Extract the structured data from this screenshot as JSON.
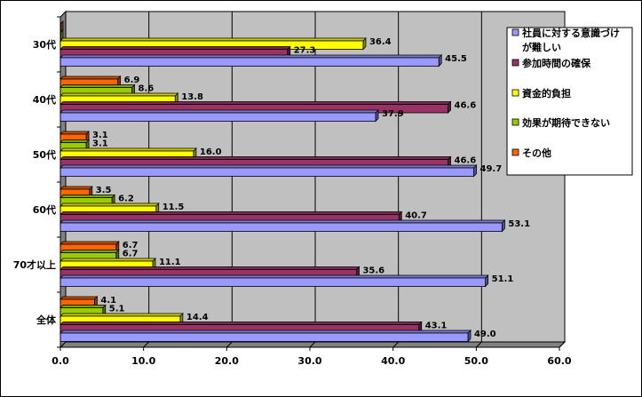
{
  "chart_data": {
    "type": "bar",
    "orientation": "horizontal",
    "title": "",
    "xlabel": "",
    "ylabel": "",
    "xlim": [
      0,
      60
    ],
    "x_ticks": [
      "0.0",
      "10.0",
      "20.0",
      "30.0",
      "40.0",
      "50.0",
      "60.0"
    ],
    "grid": "vertical",
    "legend_position": "right",
    "categories": [
      "30代",
      "40代",
      "50代",
      "60代",
      "70才以上",
      "全体"
    ],
    "series": [
      {
        "name": "社員に対する意識づけが難しい",
        "color": "#9999ff",
        "values": [
          45.5,
          37.9,
          49.7,
          53.1,
          51.1,
          49.0
        ]
      },
      {
        "name": "参加時間の確保",
        "color": "#993366",
        "values": [
          27.3,
          46.6,
          46.6,
          40.7,
          35.6,
          43.1
        ]
      },
      {
        "name": "資金的負担",
        "color": "#ffff00",
        "values": [
          36.4,
          13.8,
          16.0,
          11.5,
          11.1,
          14.4
        ]
      },
      {
        "name": "効果が期待できない",
        "color": "#99cc00",
        "values": [
          0.0,
          8.6,
          3.1,
          6.2,
          6.7,
          5.1
        ]
      },
      {
        "name": "その他",
        "color": "#ff6600",
        "values": [
          0.0,
          6.9,
          3.1,
          3.5,
          6.7,
          4.1
        ]
      }
    ],
    "data_labels": [
      [
        "45.5",
        "37.9",
        "49.7",
        "53.1",
        "51.1",
        "49.0"
      ],
      [
        "27.3",
        "46.6",
        "46.6",
        "40.7",
        "35.6",
        "43.1"
      ],
      [
        "36.4",
        "13.8",
        "16.0",
        "11.5",
        "11.1",
        "14.4"
      ],
      [
        "",
        "8.6",
        "3.1",
        "6.2",
        "6.7",
        "5.1"
      ],
      [
        "",
        "6.9",
        "3.1",
        "3.5",
        "6.7",
        "4.1"
      ]
    ],
    "legend_lines": [
      [
        "社員に対する意識づけ",
        "が難しい"
      ],
      [
        "参加時間の確保"
      ],
      [
        "資金的負担"
      ],
      [
        "効果が期待できない"
      ],
      [
        "その他"
      ]
    ]
  }
}
